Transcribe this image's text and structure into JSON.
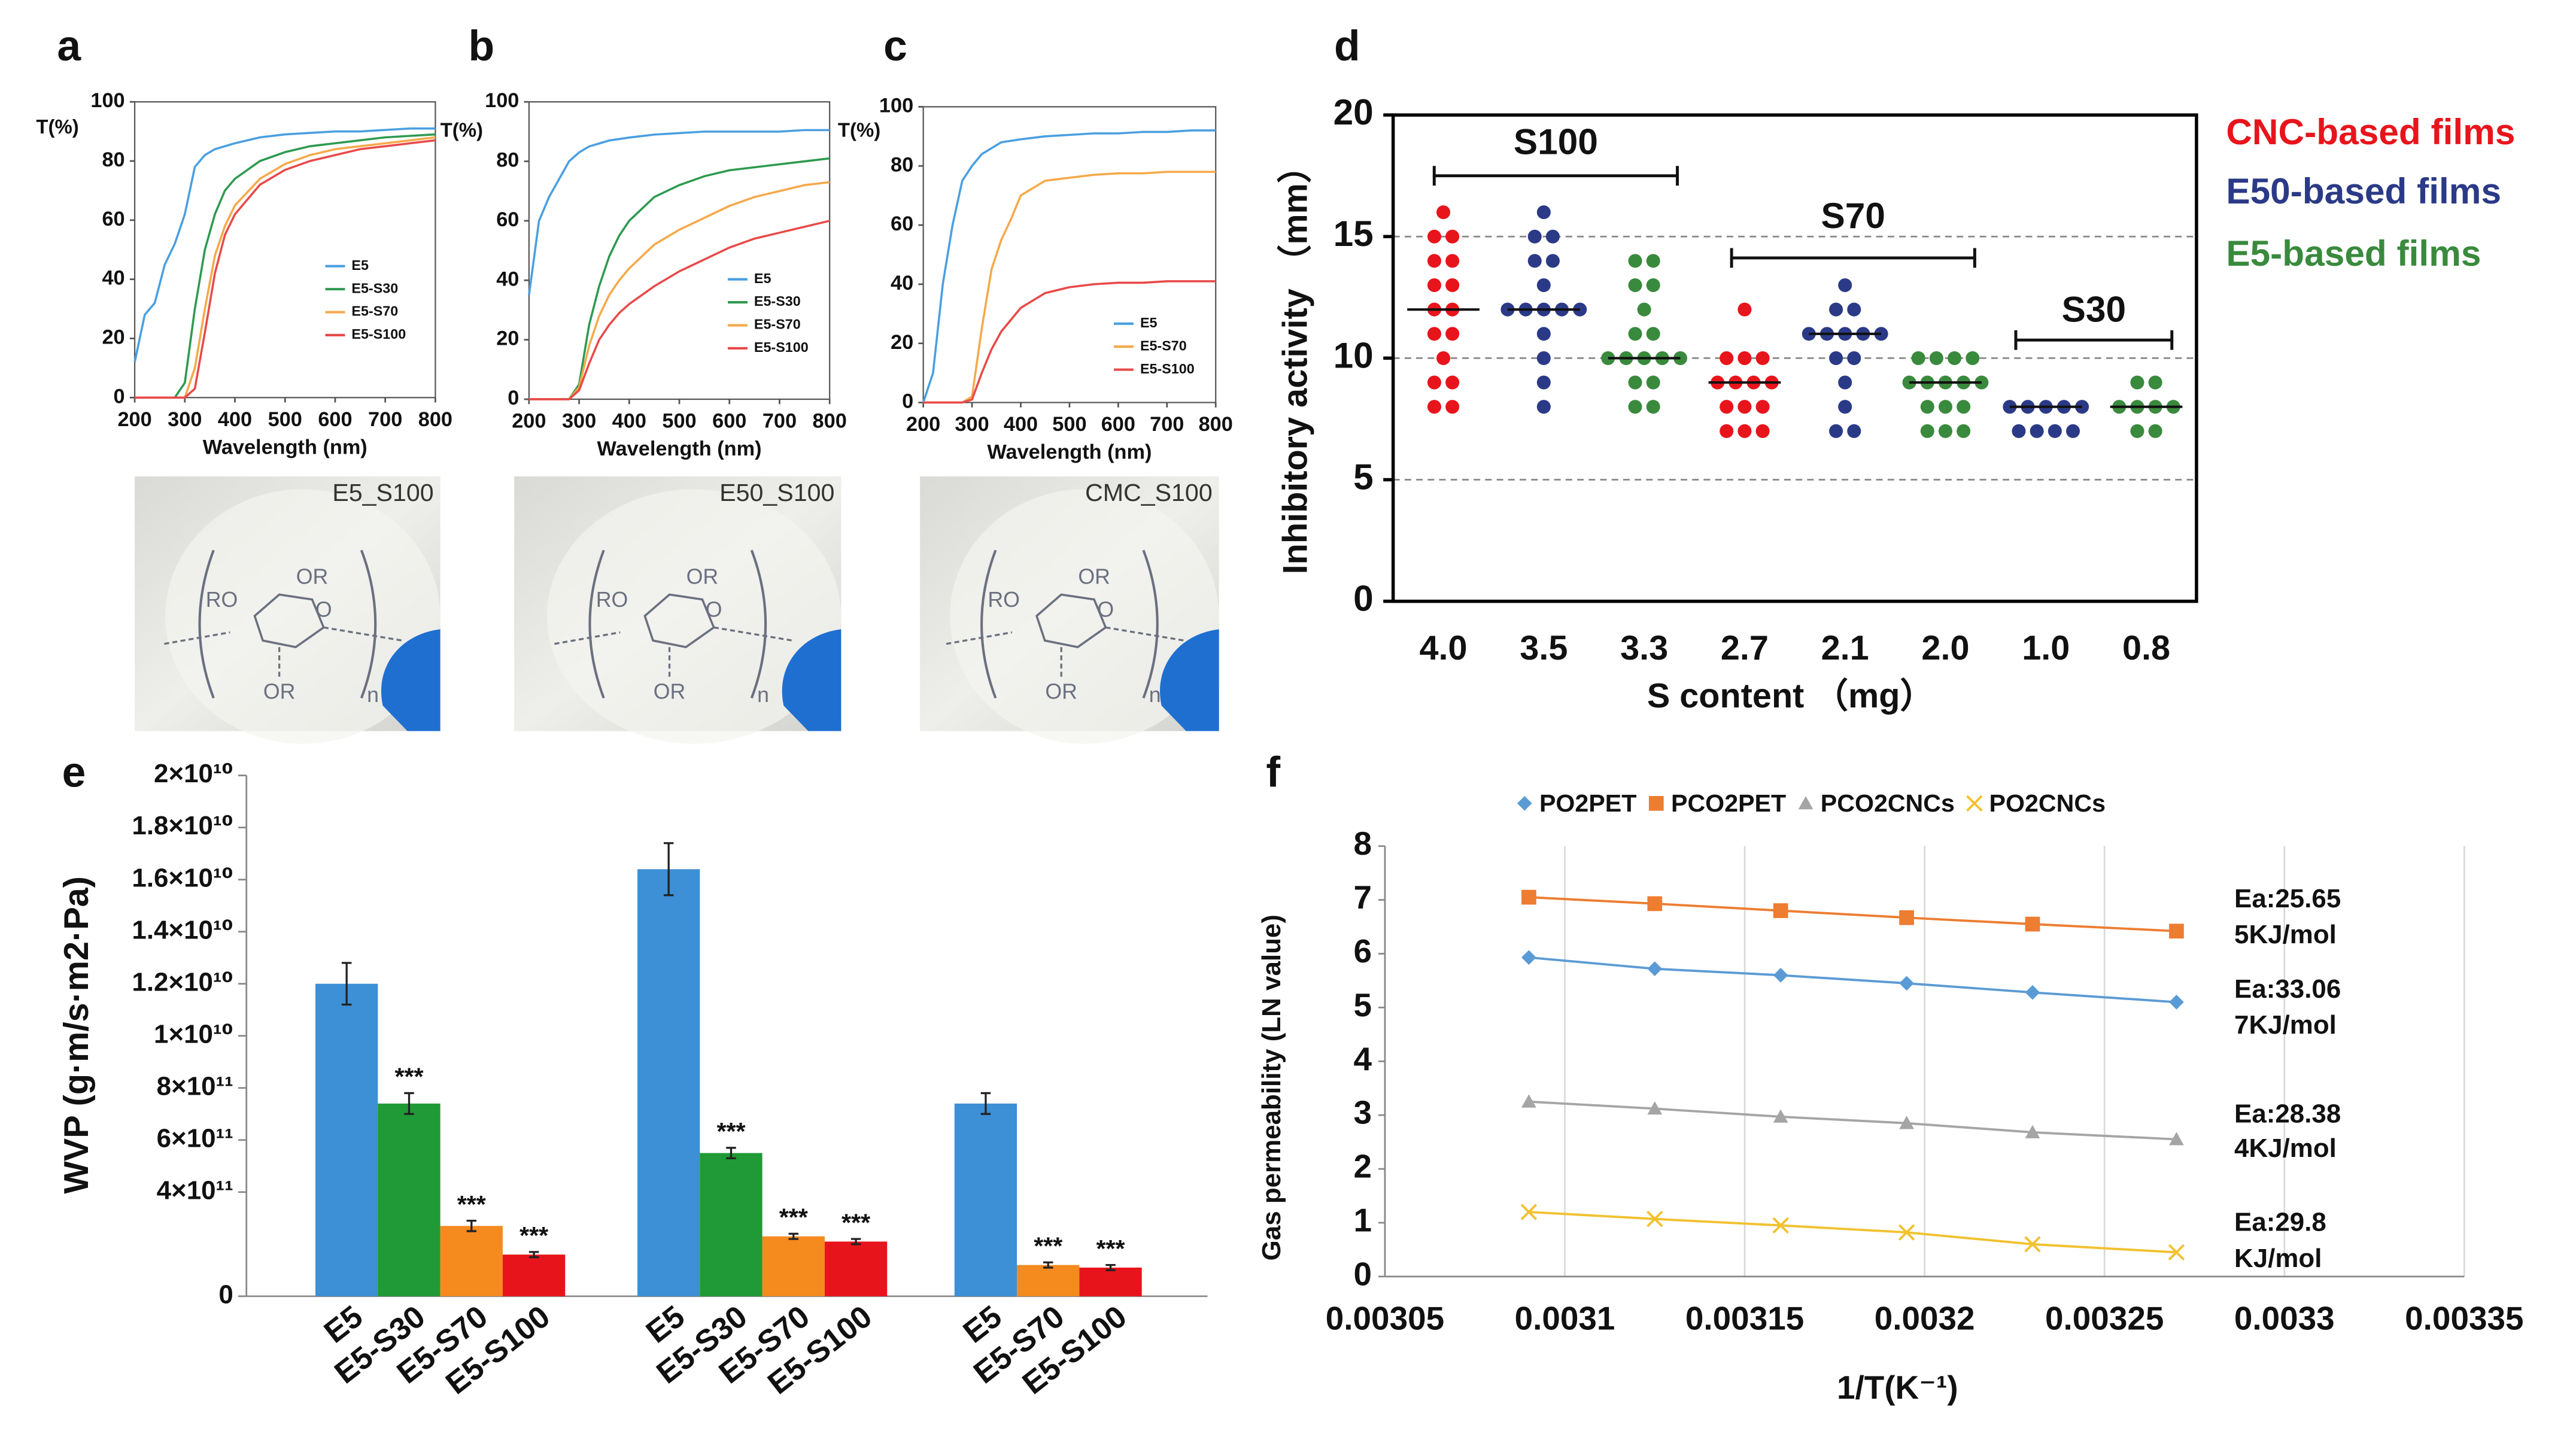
{
  "chart_data": [
    {
      "type": "line",
      "panel": "a",
      "y_label": "T(%)",
      "x_label": "Wavelength (nm)",
      "x": [
        200,
        220,
        240,
        260,
        280,
        300,
        320,
        340,
        360,
        380,
        400,
        450,
        500,
        550,
        600,
        650,
        700,
        750,
        800
      ],
      "xlim": [
        200,
        800
      ],
      "xticks": [
        200,
        300,
        400,
        500,
        600,
        700,
        800
      ],
      "ylim": [
        0,
        100
      ],
      "yticks": [
        0,
        20,
        40,
        60,
        80,
        100
      ],
      "series": [
        {
          "name": "E5",
          "color": "#4a9fe0",
          "values": [
            12,
            28,
            32,
            45,
            52,
            62,
            78,
            82,
            84,
            85,
            86,
            88,
            89,
            89.5,
            90,
            90,
            90.5,
            91,
            91
          ]
        },
        {
          "name": "E5-S30",
          "color": "#2e9a4f",
          "values": [
            0,
            0,
            0,
            0,
            0,
            5,
            30,
            50,
            62,
            70,
            74,
            80,
            83,
            85,
            86,
            87,
            88,
            88.5,
            89
          ]
        },
        {
          "name": "E5-S70",
          "color": "#f5a94a",
          "values": [
            0,
            0,
            0,
            0,
            0,
            0,
            10,
            30,
            48,
            58,
            65,
            74,
            79,
            82,
            84,
            85,
            86,
            87,
            88
          ]
        },
        {
          "name": "E5-S100",
          "color": "#e84a4a",
          "values": [
            0,
            0,
            0,
            0,
            0,
            0,
            3,
            22,
            42,
            55,
            62,
            72,
            77,
            80,
            82,
            84,
            85,
            86,
            87
          ]
        }
      ]
    },
    {
      "type": "line",
      "panel": "b",
      "y_label": "T(%)",
      "x_label": "Wavelength (nm)",
      "x": [
        200,
        220,
        240,
        260,
        280,
        300,
        320,
        340,
        360,
        380,
        400,
        450,
        500,
        550,
        600,
        650,
        700,
        750,
        800
      ],
      "xlim": [
        200,
        800
      ],
      "xticks": [
        200,
        300,
        400,
        500,
        600,
        700,
        800
      ],
      "ylim": [
        0,
        100
      ],
      "yticks": [
        0,
        20,
        40,
        60,
        80,
        100
      ],
      "series": [
        {
          "name": "E5",
          "color": "#4a9fe0",
          "values": [
            35,
            60,
            68,
            74,
            80,
            83,
            85,
            86,
            87,
            87.5,
            88,
            89,
            89.5,
            90,
            90,
            90,
            90,
            90.5,
            90.5
          ]
        },
        {
          "name": "E5-S30",
          "color": "#2e9a4f",
          "values": [
            0,
            0,
            0,
            0,
            0,
            5,
            25,
            38,
            48,
            55,
            60,
            68,
            72,
            75,
            77,
            78,
            79,
            80,
            81
          ]
        },
        {
          "name": "E5-S70",
          "color": "#f5a94a",
          "values": [
            0,
            0,
            0,
            0,
            0,
            4,
            18,
            28,
            35,
            40,
            44,
            52,
            57,
            61,
            65,
            68,
            70,
            72,
            73
          ]
        },
        {
          "name": "E5-S100",
          "color": "#e84a4a",
          "values": [
            0,
            0,
            0,
            0,
            0,
            3,
            12,
            20,
            25,
            29,
            32,
            38,
            43,
            47,
            51,
            54,
            56,
            58,
            60
          ]
        }
      ]
    },
    {
      "type": "line",
      "panel": "c",
      "y_label": "T(%)",
      "x_label": "Wavelength (nm)",
      "x": [
        200,
        220,
        240,
        260,
        280,
        300,
        320,
        340,
        360,
        380,
        400,
        450,
        500,
        550,
        600,
        650,
        700,
        750,
        800
      ],
      "xlim": [
        200,
        800
      ],
      "xticks": [
        200,
        300,
        400,
        500,
        600,
        700,
        800
      ],
      "ylim": [
        0,
        100
      ],
      "yticks": [
        0,
        20,
        40,
        60,
        80,
        100
      ],
      "series": [
        {
          "name": "E5",
          "color": "#4a9fe0",
          "values": [
            0,
            10,
            40,
            60,
            75,
            80,
            84,
            86,
            88,
            88.5,
            89,
            90,
            90.5,
            91,
            91,
            91.5,
            91.5,
            92,
            92
          ]
        },
        {
          "name": "E5-S70",
          "color": "#f5a94a",
          "values": [
            0,
            0,
            0,
            0,
            0,
            2,
            25,
            45,
            55,
            62,
            70,
            75,
            76,
            77,
            77.5,
            77.5,
            78,
            78,
            78
          ]
        },
        {
          "name": "E5-S100",
          "color": "#e84a4a",
          "values": [
            0,
            0,
            0,
            0,
            0,
            1,
            10,
            18,
            24,
            28,
            32,
            37,
            39,
            40,
            40.5,
            40.5,
            41,
            41,
            41
          ]
        }
      ]
    },
    {
      "type": "strip",
      "panel": "d",
      "y_label": "Inhibitory activity （mm）",
      "x_label": "S content （mg）",
      "categories": [
        "4.0",
        "3.5",
        "3.3",
        "2.7",
        "2.1",
        "2.0",
        "1.0",
        "0.8"
      ],
      "ylim": [
        0,
        20
      ],
      "yticks": [
        0,
        5,
        10,
        15,
        20
      ],
      "grid": "dashed",
      "brackets": [
        "S100",
        "S70",
        "S30"
      ],
      "series": [
        {
          "name": "CNC-based films",
          "color": "#e8141c",
          "values": [
            [
              16,
              15,
              15,
              14,
              14,
              13,
              13,
              12,
              12,
              11,
              11,
              10,
              9,
              9,
              8,
              8
            ],
            null,
            null,
            [
              12,
              10,
              10,
              10,
              9,
              9,
              9,
              9,
              8,
              8,
              8,
              7,
              7,
              7
            ],
            null,
            null,
            null,
            null
          ],
          "medians": [
            12,
            null,
            null,
            9,
            null,
            null,
            null,
            null
          ]
        },
        {
          "name": "E50-based films",
          "color": "#2b3a87",
          "values": [
            null,
            [
              16,
              15,
              15,
              14,
              14,
              13,
              12,
              12,
              12,
              12,
              12,
              11,
              10,
              9,
              8
            ],
            null,
            null,
            [
              13,
              12,
              12,
              11,
              11,
              11,
              11,
              11,
              10,
              10,
              9,
              8,
              7,
              7
            ],
            null,
            [
              8,
              8,
              8,
              8,
              8,
              7,
              7,
              7,
              7
            ],
            null
          ],
          "medians": [
            null,
            12,
            null,
            null,
            11,
            null,
            8,
            null
          ]
        },
        {
          "name": "E5-based films",
          "color": "#3a8a3d",
          "values": [
            null,
            null,
            [
              14,
              14,
              13,
              13,
              12,
              11,
              11,
              10,
              10,
              10,
              10,
              10,
              9,
              9,
              8,
              8
            ],
            null,
            null,
            [
              10,
              10,
              10,
              10,
              9,
              9,
              9,
              9,
              9,
              8,
              8,
              8,
              7,
              7,
              7
            ],
            null,
            [
              9,
              9,
              8,
              8,
              8,
              8,
              7,
              7
            ]
          ],
          "medians": [
            null,
            null,
            10,
            null,
            null,
            9,
            null,
            8
          ]
        }
      ]
    },
    {
      "type": "grouped-bar",
      "panel": "e",
      "y_label": "WVP (g·m/s·m2·Pa)",
      "ylim": [
        0,
        2
      ],
      "yticks": [
        0,
        {
          "value": 0.4,
          "label": "4×10¹¹"
        },
        {
          "value": 0.6,
          "label": "6×10¹¹"
        },
        {
          "value": 0.8,
          "label": "8×10¹¹"
        },
        {
          "value": 1,
          "label": "1×10¹⁰"
        },
        {
          "value": 1.2,
          "label": "1.2×10¹⁰"
        },
        {
          "value": 1.4,
          "label": "1.4×10¹⁰"
        },
        {
          "value": 1.6,
          "label": "1.6×10¹⁰"
        },
        {
          "value": 1.8,
          "label": "1.8×10¹⁰"
        },
        {
          "value": 2,
          "label": "2×10¹⁰"
        }
      ],
      "groups": [
        {
          "categories": [
            "E5",
            "E5-S30",
            "E5-S70",
            "E5-S100"
          ],
          "values": [
            1.2,
            0.74,
            0.27,
            0.16
          ],
          "errors": [
            0.08,
            0.04,
            0.02,
            0.01
          ],
          "significance": [
            null,
            "***",
            "***",
            "***"
          ],
          "colors": [
            "#3d8fd6",
            "#1f9a36",
            "#f58a1f",
            "#e8141c"
          ]
        },
        {
          "categories": [
            "E5",
            "E5-S30",
            "E5-S70",
            "E5-S100"
          ],
          "values": [
            1.64,
            0.55,
            0.23,
            0.21
          ],
          "errors": [
            0.1,
            0.02,
            0.01,
            0.01
          ],
          "significance": [
            null,
            "***",
            "***",
            "***"
          ],
          "colors": [
            "#3d8fd6",
            "#1f9a36",
            "#f58a1f",
            "#e8141c"
          ]
        },
        {
          "categories": [
            "E5",
            "E5-S70",
            "E5-S100"
          ],
          "values": [
            0.74,
            0.12,
            0.11
          ],
          "errors": [
            0.04,
            0.01,
            0.01
          ],
          "significance": [
            null,
            "***",
            "***"
          ],
          "colors": [
            "#3d8fd6",
            "#f58a1f",
            "#e8141c"
          ]
        }
      ]
    },
    {
      "type": "scatter-line",
      "panel": "f",
      "y_label": "Gas permeability (LN value)",
      "x_label": "1/T(K⁻¹)",
      "x": [
        0.00309,
        0.003125,
        0.00316,
        0.003195,
        0.00323,
        0.00327
      ],
      "xlim": [
        0.00305,
        0.00335
      ],
      "xticks": [
        0.00305,
        0.0031,
        0.00315,
        0.0032,
        0.00325,
        0.0033,
        0.00335
      ],
      "ylim": [
        0,
        8
      ],
      "yticks": [
        0,
        1,
        2,
        3,
        4,
        5,
        6,
        7,
        8
      ],
      "grid": "x",
      "series": [
        {
          "name": "PO2PET",
          "color": "#5b9bd5",
          "marker": "diamond",
          "values": [
            5.93,
            5.72,
            5.6,
            5.45,
            5.28,
            5.1
          ],
          "annotation": [
            "Ea:33.06",
            "7KJ/mol"
          ]
        },
        {
          "name": "PCO2PET",
          "color": "#ed7d31",
          "marker": "square",
          "values": [
            7.05,
            6.93,
            6.8,
            6.67,
            6.55,
            6.42
          ],
          "annotation": [
            "Ea:25.65",
            "5KJ/mol"
          ]
        },
        {
          "name": "PCO2CNCs",
          "color": "#a5a5a5",
          "marker": "triangle",
          "values": [
            3.25,
            3.12,
            2.97,
            2.85,
            2.68,
            2.55
          ],
          "annotation": [
            "Ea:28.38",
            "4KJ/mol"
          ]
        },
        {
          "name": "PO2CNCs",
          "color": "#f2c12e",
          "marker": "x",
          "values": [
            1.2,
            1.07,
            0.95,
            0.82,
            0.6,
            0.45
          ],
          "annotation": [
            "Ea:29.8",
            "KJ/mol"
          ]
        }
      ]
    }
  ],
  "photos": [
    {
      "label": "E5_S100"
    },
    {
      "label": "E50_S100"
    },
    {
      "label": "CMC_S100"
    }
  ],
  "structure_labels": [
    "RO",
    "O",
    "OR",
    "OR",
    "n"
  ]
}
